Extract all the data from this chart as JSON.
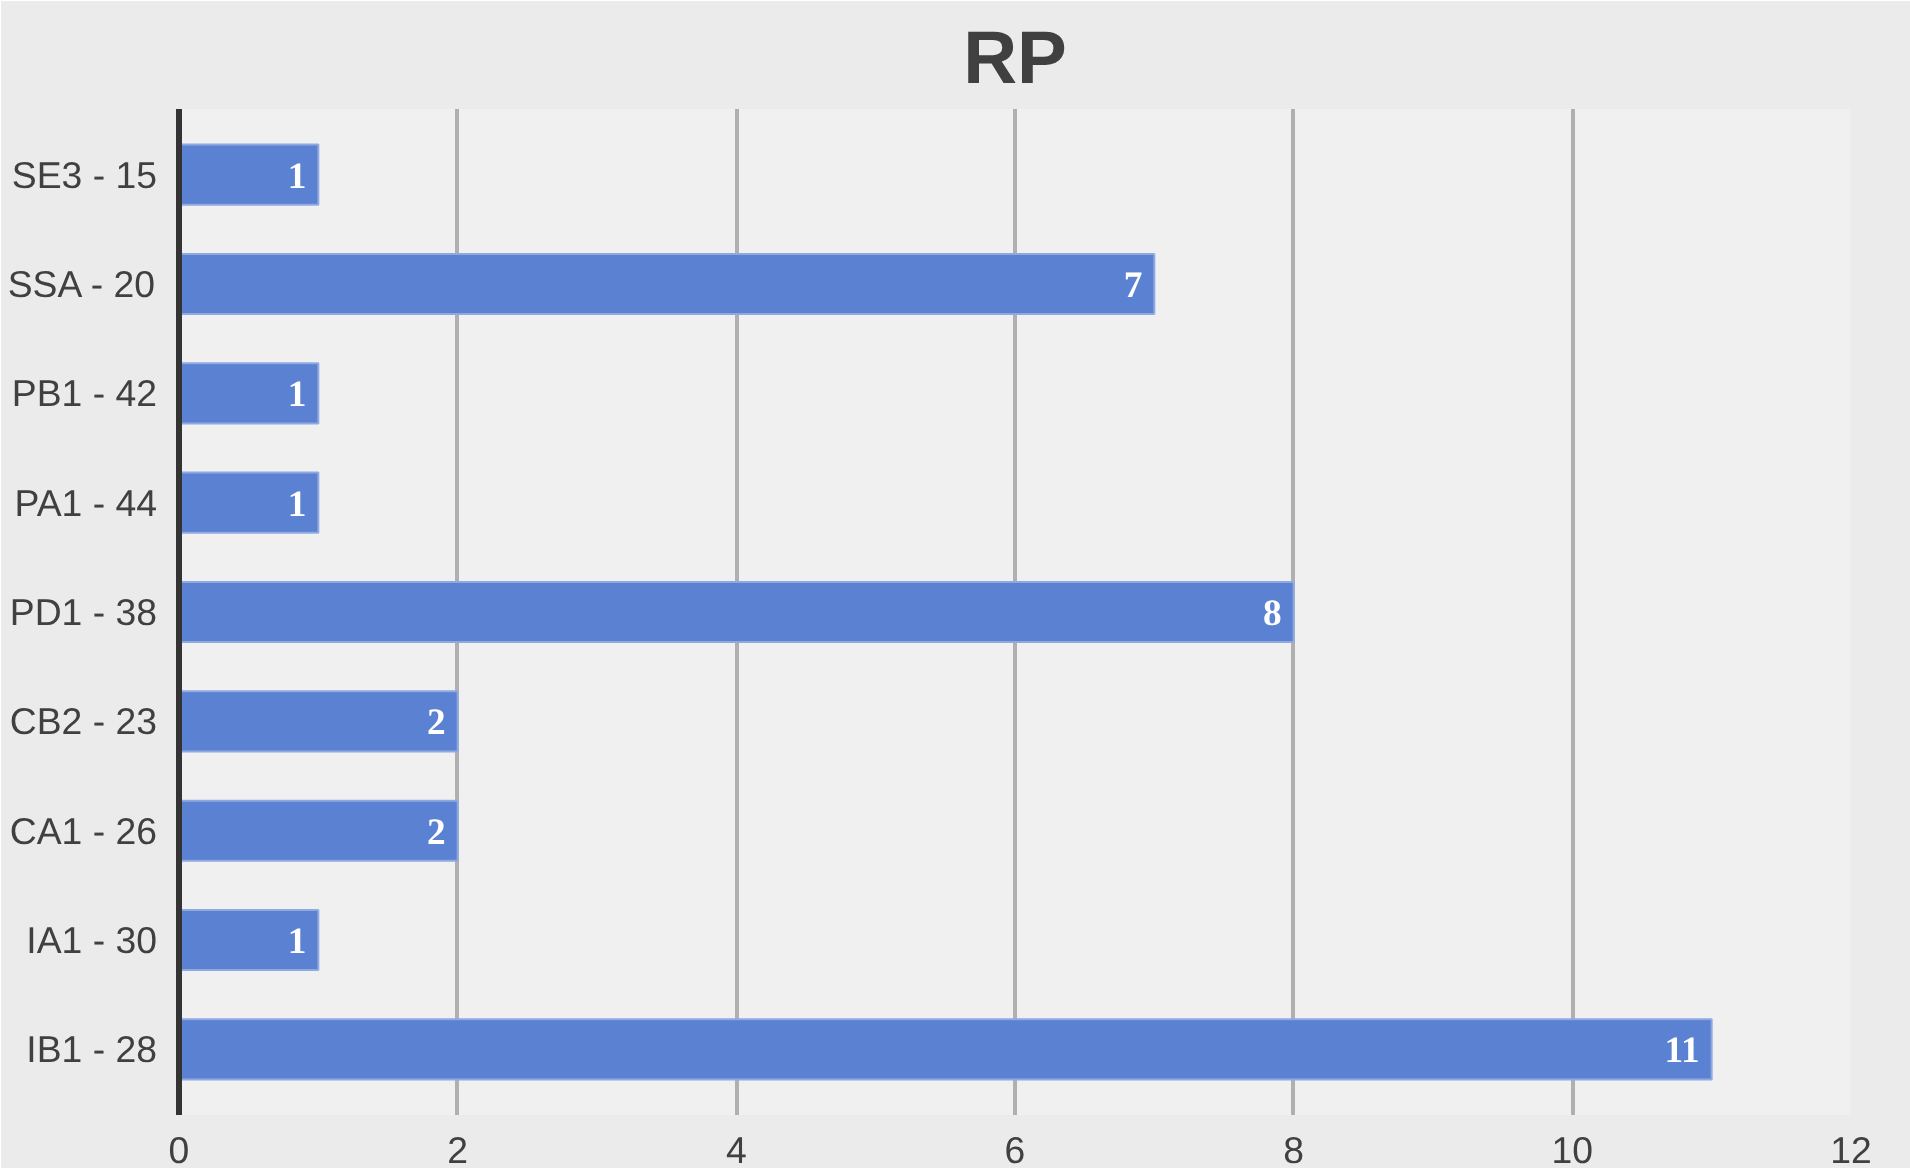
{
  "chart_data": {
    "type": "bar",
    "orientation": "horizontal",
    "title": "RP",
    "categories": [
      "SE3 - 15",
      "SSA - 20",
      "PB1 - 42",
      "PA1 - 44",
      "PD1 - 38",
      "CB2 - 23",
      "CA1 - 26",
      "IA1 - 30",
      "IB1 - 28"
    ],
    "values": [
      1,
      7,
      1,
      1,
      8,
      2,
      2,
      1,
      11
    ],
    "color": "#5b82d2",
    "xlim": [
      0,
      12
    ],
    "xticks": [
      0,
      2,
      4,
      6,
      8,
      10,
      12
    ],
    "grid": "x",
    "data_labels": true
  }
}
